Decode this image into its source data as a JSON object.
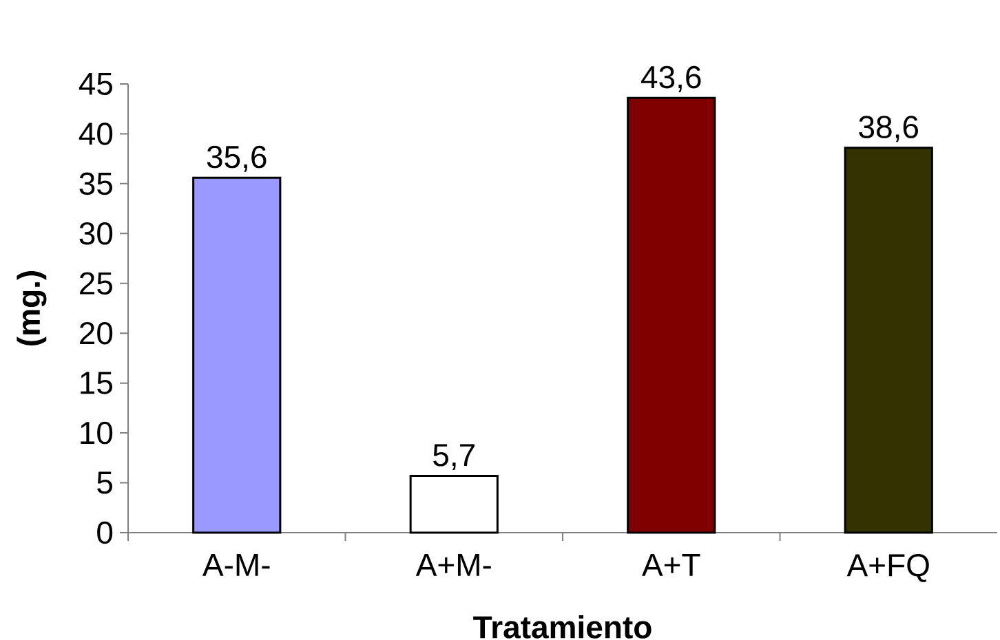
{
  "chart_data": {
    "type": "bar",
    "xlabel": "Tratamiento",
    "ylabel": "(mg.)",
    "categories": [
      "A-M-",
      "A+M-",
      "A+T",
      "A+FQ"
    ],
    "values": [
      35.6,
      5.7,
      43.6,
      38.6
    ],
    "colors": [
      "#9999ff",
      "#ffffff",
      "#800000",
      "#333300"
    ],
    "value_labels": [
      "35,6",
      "5,7",
      "43,6",
      "38,6"
    ],
    "ylim": [
      0,
      45
    ],
    "yticks": [
      0,
      5,
      10,
      15,
      20,
      25,
      30,
      35,
      40,
      45
    ]
  }
}
